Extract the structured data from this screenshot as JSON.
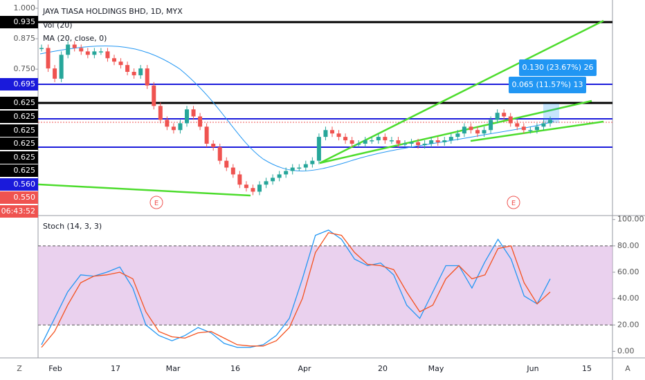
{
  "header": {
    "title": "JAYA TIASA HOLDINGS BHD, 1D, MYX",
    "indicators": [
      "Vol (20)",
      "MA (20, close, 0)"
    ]
  },
  "markers": {
    "earnings": "E",
    "left": "Z",
    "right": "A"
  },
  "measures": [
    "0.130 (23.67%) 26",
    "0.065 (11.57%) 13"
  ],
  "time_axis": [
    "Feb",
    "17",
    "Mar",
    "16",
    "Apr",
    "20",
    "May",
    "Jun",
    "15"
  ],
  "price_labels": [
    {
      "label": "0.935",
      "color": "#000000"
    },
    {
      "label": "0.695",
      "color": "#1a1adb"
    },
    {
      "label": "0.625",
      "color": "#000000"
    },
    {
      "label": "0.625",
      "color": "#000000"
    },
    {
      "label": "0.625",
      "color": "#000000"
    },
    {
      "label": "0.625",
      "color": "#000000"
    },
    {
      "label": "0.625",
      "color": "#000000"
    },
    {
      "label": "0.625",
      "color": "#000000"
    },
    {
      "label": "0.560",
      "color": "#1a1adb"
    },
    {
      "label": "0.550",
      "color": "#ef5350"
    },
    {
      "label": "06:43:52",
      "color": "#ef5350"
    }
  ],
  "chart_data": [
    {
      "type": "candlestick",
      "up_color": "#26a69a",
      "down_color": "#ef5350",
      "ylim": [
        0.149,
        1.034
      ],
      "yticks": [
        {
          "value": 1,
          "label": "1.000"
        },
        {
          "value": 0.875,
          "label": "0.875"
        },
        {
          "value": 0.75,
          "label": "0.750"
        }
      ],
      "close": [
        0.837,
        0.753,
        0.711,
        0.809,
        0.851,
        0.837,
        0.823,
        0.809,
        0.823,
        0.823,
        0.795,
        0.781,
        0.767,
        0.739,
        0.725,
        0.753,
        0.683,
        0.599,
        0.542,
        0.514,
        0.5,
        0.528,
        0.585,
        0.556,
        0.514,
        0.444,
        0.43,
        0.374,
        0.346,
        0.318,
        0.276,
        0.262,
        0.247,
        0.276,
        0.29,
        0.304,
        0.318,
        0.332,
        0.346,
        0.346,
        0.36,
        0.374,
        0.472,
        0.5,
        0.486,
        0.472,
        0.458,
        0.444,
        0.444,
        0.458,
        0.458,
        0.472,
        0.458,
        0.458,
        0.444,
        0.444,
        0.45,
        0.438,
        0.444,
        0.458,
        0.45,
        0.458,
        0.472,
        0.486,
        0.514,
        0.5,
        0.486,
        0.5,
        0.542,
        0.571,
        0.556,
        0.528,
        0.514,
        0.5,
        0.5,
        0.514,
        0.528,
        0.542
      ]
    },
    {
      "type": "line",
      "title": "Stoch (14, 3, 3)",
      "ylim": [
        -5,
        103
      ],
      "yticks": [
        {
          "value": 100,
          "label": "100.00"
        },
        {
          "value": 80,
          "label": "80.00"
        },
        {
          "value": 60,
          "label": "60.00"
        },
        {
          "value": 40,
          "label": "40.00"
        },
        {
          "value": 20,
          "label": "20.00"
        },
        {
          "value": 0,
          "label": "0.00"
        }
      ],
      "band": [
        20,
        80
      ],
      "series": [
        {
          "color": "#2196f3",
          "values": [
            5,
            25,
            45,
            58,
            57,
            60,
            64,
            48,
            20,
            12,
            8,
            12,
            18,
            14,
            6,
            3,
            3,
            5,
            12,
            25,
            55,
            88,
            92,
            85,
            70,
            65,
            67,
            58,
            35,
            25,
            45,
            65,
            65,
            48,
            68,
            85,
            70,
            42,
            36,
            55
          ]
        },
        {
          "color": "#f4511e",
          "values": [
            3,
            15,
            35,
            52,
            57,
            58,
            60,
            55,
            30,
            15,
            11,
            10,
            14,
            15,
            10,
            5,
            4,
            4,
            8,
            18,
            40,
            75,
            90,
            88,
            75,
            66,
            65,
            62,
            45,
            30,
            35,
            55,
            65,
            55,
            58,
            78,
            80,
            52,
            36,
            45
          ]
        }
      ]
    }
  ]
}
